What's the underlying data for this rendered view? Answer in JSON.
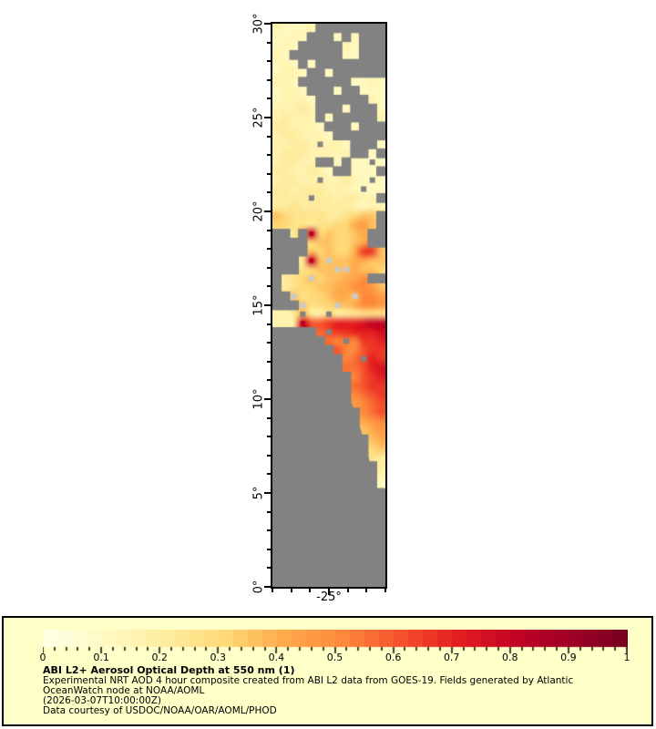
{
  "chart_data": {
    "type": "heatmap",
    "projection": "lat-lon",
    "lon_range": [
      -28,
      -22
    ],
    "lat_range": [
      0,
      30
    ],
    "x_major_ticks": [
      {
        "value": -25,
        "label": "-25°"
      }
    ],
    "y_major_ticks": [
      {
        "value": 0,
        "label": "0°"
      },
      {
        "value": 5,
        "label": "5°"
      },
      {
        "value": 10,
        "label": "10°"
      },
      {
        "value": 15,
        "label": "15°"
      },
      {
        "value": 20,
        "label": "20°"
      },
      {
        "value": 25,
        "label": "25°"
      },
      {
        "value": 30,
        "label": "30°"
      }
    ],
    "minor_tick_interval_deg": 1,
    "nodata_color": "#828282",
    "island_color": "#C9C9C9",
    "colormap_stops": [
      [
        0.0,
        "#FFFFE4"
      ],
      [
        0.1,
        "#FFF9C0"
      ],
      [
        0.2,
        "#FEEC9E"
      ],
      [
        0.3,
        "#FED976"
      ],
      [
        0.4,
        "#FEA94A"
      ],
      [
        0.5,
        "#FD8A3C"
      ],
      [
        0.6,
        "#F5512C"
      ],
      [
        0.7,
        "#E31E20"
      ],
      [
        0.8,
        "#C00225"
      ],
      [
        0.9,
        "#9C0026"
      ],
      [
        1.0,
        "#70001E"
      ]
    ],
    "value_key": {
      "a": 0.05,
      "b": 0.1,
      "c": 0.15,
      "d": 0.2,
      "e": 0.25,
      "f": 0.3,
      "g": 0.35,
      "h": 0.4,
      "i": 0.45,
      "j": 0.5,
      "k": 0.55,
      "l": 0.6,
      "m": 0.65,
      "n": 0.7,
      "o": 0.75,
      "p": 0.8
    },
    "grid_cols": 13,
    "grid_rows": [
      "cbbbc........",
      "bbcb...b.b...",
      "bcb.....cb...",
      "cb......bb...",
      "bcb.b........",
      "bccb..b......",
      "ccb......bbcb",
      "bccb...b..bbb",
      "bcccb......cb",
      "cccdc...b...b",
      "cdccc.b.....c",
      "ddcccb...b...",
      "cddcccb......",
      "ccddc.ccb...b",
      "cdddccccc..b.",
      "cddcc..b.bb.b",
      "ddccdcb..bbb.",
      "cddcc.ccdcb.b",
      "ddcdddcccb.bb",
      "dddd.ddcddcc.",
      "ddeddddddcbcc",
      "gfeeeeddefgg.",
      "ffeedeeffhig.",
      "..d.pfgffgh..",
      "....fggffgh..",
      "....gfgffhmmg",
      "...dpgIgghhgg",
      "...efggIIhggf",
      ".defIfgghhj..",
      ".deffgghhjjig",
      "..IeffghhIjji",
      "...IeffIghjji",
      "ccd.dc.cddeee",
      "ccdpllmnnnopp",
      ".....k.mmnnno",
      "......kj.jmmn",
      ".......ljjlmm",
      "........jk.nm",
      "........kklno",
      ".........jlmn",
      ".........klmm",
      ".........jklm",
      ".........ijkl",
      "..........jkl",
      "..........hij",
      "..........ghi",
      "...........gh",
      "...........fg",
      "...........ed",
      "............d",
      "............c",
      "............b",
      ".............",
      ".............",
      ".............",
      ".............",
      ".............",
      ".............",
      ".............",
      ".............",
      ".............",
      ".............",
      "............."
    ],
    "colorbar": {
      "min": 0,
      "max": 1,
      "tick_labels": [
        "0",
        "0.1",
        "0.2",
        "0.3",
        "0.4",
        "0.5",
        "0.6",
        "0.7",
        "0.8",
        "0.9",
        "1"
      ],
      "minor_step": 0.02,
      "major_step": 0.1,
      "quantize_steps": 40
    }
  },
  "caption": {
    "title": "ABI L2+ Aerosol Optical Depth at 550 nm (1)",
    "lines": [
      "Experimental NRT AOD 4 hour composite created from ABI L2 data from GOES-19. Fields generated by Atlantic",
      "OceanWatch node at NOAA/AOML",
      "(2026-03-07T10:00:00Z)",
      "Data courtesy of USDOC/NOAA/OAR/AOML/PHOD"
    ]
  },
  "colors": {
    "legend_bg": "#FFFFC8",
    "border": "#000000",
    "page_bg": "#FFFFFF"
  }
}
